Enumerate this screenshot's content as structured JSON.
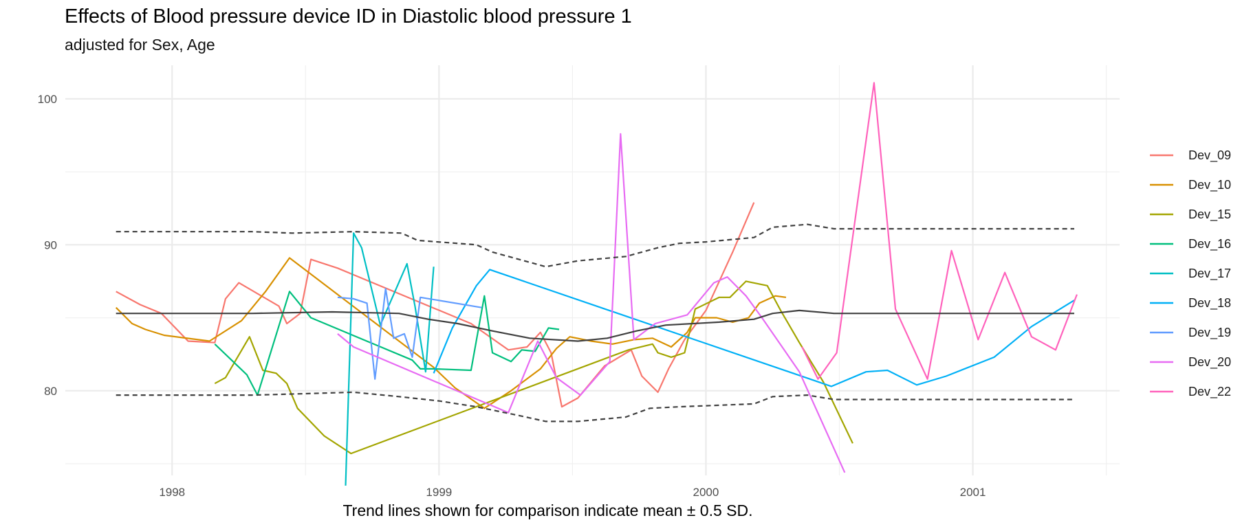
{
  "chart_data": {
    "type": "line",
    "title": "Effects of Blood pressure device ID in Diastolic blood pressure 1",
    "subtitle": "adjusted for Sex, Age",
    "caption": "Trend lines shown for comparison indicate mean ± 0.5 SD.",
    "xlabel": "",
    "ylabel": "",
    "xlim": [
      1997.6,
      2001.55
    ],
    "ylim": [
      74.2,
      102.3
    ],
    "x_ticks": [
      1998,
      1999,
      2000,
      2001
    ],
    "x_tick_labels": [
      "1998",
      "1999",
      "2000",
      "2001"
    ],
    "y_ticks": [
      80,
      90,
      100
    ],
    "y_tick_labels": [
      "80",
      "90",
      "100"
    ],
    "grid": true,
    "legend_position": "right",
    "series": [
      {
        "name": "Dev_09",
        "color": "#F8766D",
        "points": [
          [
            1997.79,
            86.8
          ],
          [
            1997.88,
            85.9
          ],
          [
            1997.96,
            85.3
          ],
          [
            1998.06,
            83.4
          ],
          [
            1998.16,
            83.3
          ],
          [
            1998.2,
            86.3
          ],
          [
            1998.25,
            87.4
          ],
          [
            1998.4,
            85.8
          ],
          [
            1998.43,
            84.6
          ],
          [
            1998.48,
            85.3
          ],
          [
            1998.52,
            89.0
          ],
          [
            1998.62,
            88.4
          ],
          [
            1999.12,
            84.6
          ],
          [
            1999.26,
            82.8
          ],
          [
            1999.33,
            83.0
          ],
          [
            1999.38,
            84.0
          ],
          [
            1999.42,
            82.6
          ],
          [
            1999.46,
            78.9
          ],
          [
            1999.52,
            79.5
          ],
          [
            1999.62,
            81.7
          ],
          [
            1999.72,
            82.8
          ],
          [
            1999.76,
            81.0
          ],
          [
            1999.82,
            79.9
          ],
          [
            1999.86,
            81.5
          ],
          [
            1999.92,
            83.5
          ],
          [
            2000.0,
            85.5
          ],
          [
            2000.1,
            89.5
          ],
          [
            2000.18,
            92.9
          ]
        ]
      },
      {
        "name": "Dev_10",
        "color": "#D89000",
        "points": [
          [
            1997.79,
            85.7
          ],
          [
            1997.85,
            84.6
          ],
          [
            1997.9,
            84.2
          ],
          [
            1997.97,
            83.8
          ],
          [
            1998.14,
            83.4
          ],
          [
            1998.26,
            84.8
          ],
          [
            1998.35,
            86.8
          ],
          [
            1998.44,
            89.1
          ],
          [
            1998.62,
            86.6
          ],
          [
            1998.98,
            81.6
          ],
          [
            1999.06,
            80.2
          ],
          [
            1999.17,
            78.8
          ],
          [
            1999.27,
            80.0
          ],
          [
            1999.38,
            81.5
          ],
          [
            1999.44,
            82.9
          ],
          [
            1999.49,
            83.7
          ],
          [
            1999.57,
            83.4
          ],
          [
            1999.65,
            83.2
          ],
          [
            1999.73,
            83.5
          ],
          [
            1999.8,
            83.6
          ],
          [
            1999.87,
            83.0
          ],
          [
            1999.93,
            84.0
          ],
          [
            1999.96,
            85.0
          ],
          [
            2000.04,
            85.0
          ],
          [
            2000.1,
            84.7
          ],
          [
            2000.16,
            85.0
          ],
          [
            2000.2,
            86.0
          ],
          [
            2000.26,
            86.5
          ],
          [
            2000.3,
            86.4
          ]
        ]
      },
      {
        "name": "Dev_15",
        "color": "#A3A500",
        "points": [
          [
            1998.16,
            80.5
          ],
          [
            1998.2,
            80.9
          ],
          [
            1998.29,
            83.7
          ],
          [
            1998.34,
            81.4
          ],
          [
            1998.39,
            81.2
          ],
          [
            1998.43,
            80.5
          ],
          [
            1998.47,
            78.8
          ],
          [
            1998.57,
            76.9
          ],
          [
            1998.67,
            75.7
          ],
          [
            1999.71,
            82.8
          ],
          [
            1999.8,
            83.2
          ],
          [
            1999.82,
            82.6
          ],
          [
            1999.87,
            82.3
          ],
          [
            1999.92,
            82.6
          ],
          [
            1999.96,
            85.6
          ],
          [
            2000.05,
            86.4
          ],
          [
            2000.09,
            86.4
          ],
          [
            2000.15,
            87.5
          ],
          [
            2000.23,
            87.2
          ],
          [
            2000.28,
            85.5
          ],
          [
            2000.35,
            83.3
          ],
          [
            2000.44,
            80.6
          ],
          [
            2000.55,
            76.4
          ]
        ]
      },
      {
        "name": "Dev_16",
        "color": "#00BF7D",
        "points": [
          [
            1998.16,
            83.2
          ],
          [
            1998.28,
            81.1
          ],
          [
            1998.32,
            79.7
          ],
          [
            1998.44,
            86.8
          ],
          [
            1998.52,
            85.0
          ],
          [
            1998.9,
            82.1
          ],
          [
            1998.93,
            81.5
          ],
          [
            1998.98,
            81.5
          ],
          [
            1999.12,
            81.4
          ],
          [
            1999.17,
            86.5
          ],
          [
            1999.2,
            82.6
          ],
          [
            1999.27,
            82.0
          ],
          [
            1999.31,
            82.8
          ],
          [
            1999.36,
            82.7
          ],
          [
            1999.41,
            84.3
          ],
          [
            1999.45,
            84.2
          ]
        ]
      },
      {
        "name": "Dev_17",
        "color": "#00BFC4",
        "points": [
          [
            1998.65,
            73.5
          ],
          [
            1998.68,
            90.8
          ],
          [
            1998.71,
            89.8
          ],
          [
            1998.78,
            84.5
          ],
          [
            1998.88,
            88.7
          ],
          [
            1998.91,
            85.8
          ],
          [
            1998.95,
            81.3
          ],
          [
            1998.98,
            88.5
          ]
        ]
      },
      {
        "name": "Dev_18",
        "color": "#00B0F6",
        "points": [
          [
            1998.98,
            81.2
          ],
          [
            1999.05,
            84.3
          ],
          [
            1999.14,
            87.2
          ],
          [
            1999.19,
            88.3
          ],
          [
            2000.47,
            80.3
          ],
          [
            2000.6,
            81.3
          ],
          [
            2000.68,
            81.4
          ],
          [
            2000.79,
            80.4
          ],
          [
            2000.9,
            81.0
          ],
          [
            2001.08,
            82.3
          ],
          [
            2001.22,
            84.4
          ],
          [
            2001.38,
            86.2
          ]
        ]
      },
      {
        "name": "Dev_19",
        "color": "#619CFF",
        "points": [
          [
            1998.62,
            86.4
          ],
          [
            1998.68,
            86.3
          ],
          [
            1998.73,
            86.0
          ],
          [
            1998.76,
            80.8
          ],
          [
            1998.8,
            87.0
          ],
          [
            1998.83,
            83.6
          ],
          [
            1998.87,
            83.9
          ],
          [
            1998.9,
            82.3
          ],
          [
            1998.93,
            86.4
          ],
          [
            1999.16,
            85.7
          ]
        ]
      },
      {
        "name": "Dev_20",
        "color": "#E76BF3",
        "points": [
          [
            1998.62,
            83.9
          ],
          [
            1998.68,
            83.0
          ],
          [
            1999.26,
            78.5
          ],
          [
            1999.37,
            83.4
          ],
          [
            1999.44,
            80.9
          ],
          [
            1999.53,
            79.7
          ],
          [
            1999.64,
            82.0
          ],
          [
            1999.68,
            97.6
          ],
          [
            1999.73,
            83.5
          ],
          [
            1999.81,
            84.6
          ],
          [
            1999.93,
            85.2
          ],
          [
            2000.03,
            87.4
          ],
          [
            2000.08,
            87.8
          ],
          [
            2000.15,
            86.5
          ],
          [
            2000.21,
            85.0
          ],
          [
            2000.35,
            81.3
          ],
          [
            2000.52,
            74.4
          ]
        ]
      },
      {
        "name": "Dev_22",
        "color": "#FF62BC",
        "points": [
          [
            2000.36,
            83.0
          ],
          [
            2000.42,
            80.8
          ],
          [
            2000.49,
            82.6
          ],
          [
            2000.63,
            101.1
          ],
          [
            2000.71,
            85.6
          ],
          [
            2000.83,
            80.8
          ],
          [
            2000.92,
            89.6
          ],
          [
            2001.02,
            83.5
          ],
          [
            2001.12,
            88.1
          ],
          [
            2001.22,
            83.7
          ],
          [
            2001.31,
            82.8
          ],
          [
            2001.39,
            86.6
          ]
        ]
      }
    ],
    "trend_lines": {
      "mean": {
        "color": "#404040",
        "style": "solid",
        "points": [
          [
            1997.79,
            85.3
          ],
          [
            1998.3,
            85.3
          ],
          [
            1998.6,
            85.4
          ],
          [
            1998.85,
            85.3
          ],
          [
            1998.96,
            84.9
          ],
          [
            1999.07,
            84.6
          ],
          [
            1999.2,
            84.1
          ],
          [
            1999.34,
            83.6
          ],
          [
            1999.52,
            83.4
          ],
          [
            1999.63,
            83.6
          ],
          [
            1999.74,
            84.1
          ],
          [
            1999.85,
            84.5
          ],
          [
            2000.05,
            84.7
          ],
          [
            2000.18,
            84.9
          ],
          [
            2000.25,
            85.3
          ],
          [
            2000.35,
            85.5
          ],
          [
            2000.48,
            85.3
          ],
          [
            2001.38,
            85.3
          ]
        ]
      },
      "upper": {
        "color": "#404040",
        "style": "dashed",
        "points": [
          [
            1997.79,
            90.9
          ],
          [
            1998.3,
            90.9
          ],
          [
            1998.45,
            90.8
          ],
          [
            1998.68,
            90.9
          ],
          [
            1998.86,
            90.8
          ],
          [
            1998.92,
            90.3
          ],
          [
            1999.14,
            90.0
          ],
          [
            1999.2,
            89.5
          ],
          [
            1999.3,
            89.0
          ],
          [
            1999.4,
            88.5
          ],
          [
            1999.52,
            88.9
          ],
          [
            1999.7,
            89.2
          ],
          [
            1999.82,
            89.8
          ],
          [
            1999.9,
            90.1
          ],
          [
            2000.0,
            90.2
          ],
          [
            2000.18,
            90.5
          ],
          [
            2000.25,
            91.2
          ],
          [
            2000.38,
            91.4
          ],
          [
            2000.48,
            91.1
          ],
          [
            2001.38,
            91.1
          ]
        ]
      },
      "lower": {
        "color": "#404040",
        "style": "dashed",
        "points": [
          [
            1997.79,
            79.7
          ],
          [
            1998.3,
            79.7
          ],
          [
            1998.5,
            79.8
          ],
          [
            1998.68,
            79.9
          ],
          [
            1998.85,
            79.6
          ],
          [
            1999.0,
            79.3
          ],
          [
            1999.14,
            78.9
          ],
          [
            1999.3,
            78.3
          ],
          [
            1999.4,
            77.9
          ],
          [
            1999.52,
            77.9
          ],
          [
            1999.7,
            78.2
          ],
          [
            1999.79,
            78.8
          ],
          [
            1999.9,
            78.9
          ],
          [
            2000.18,
            79.1
          ],
          [
            2000.25,
            79.6
          ],
          [
            2000.38,
            79.7
          ],
          [
            2000.48,
            79.4
          ],
          [
            2001.38,
            79.4
          ]
        ]
      }
    }
  }
}
